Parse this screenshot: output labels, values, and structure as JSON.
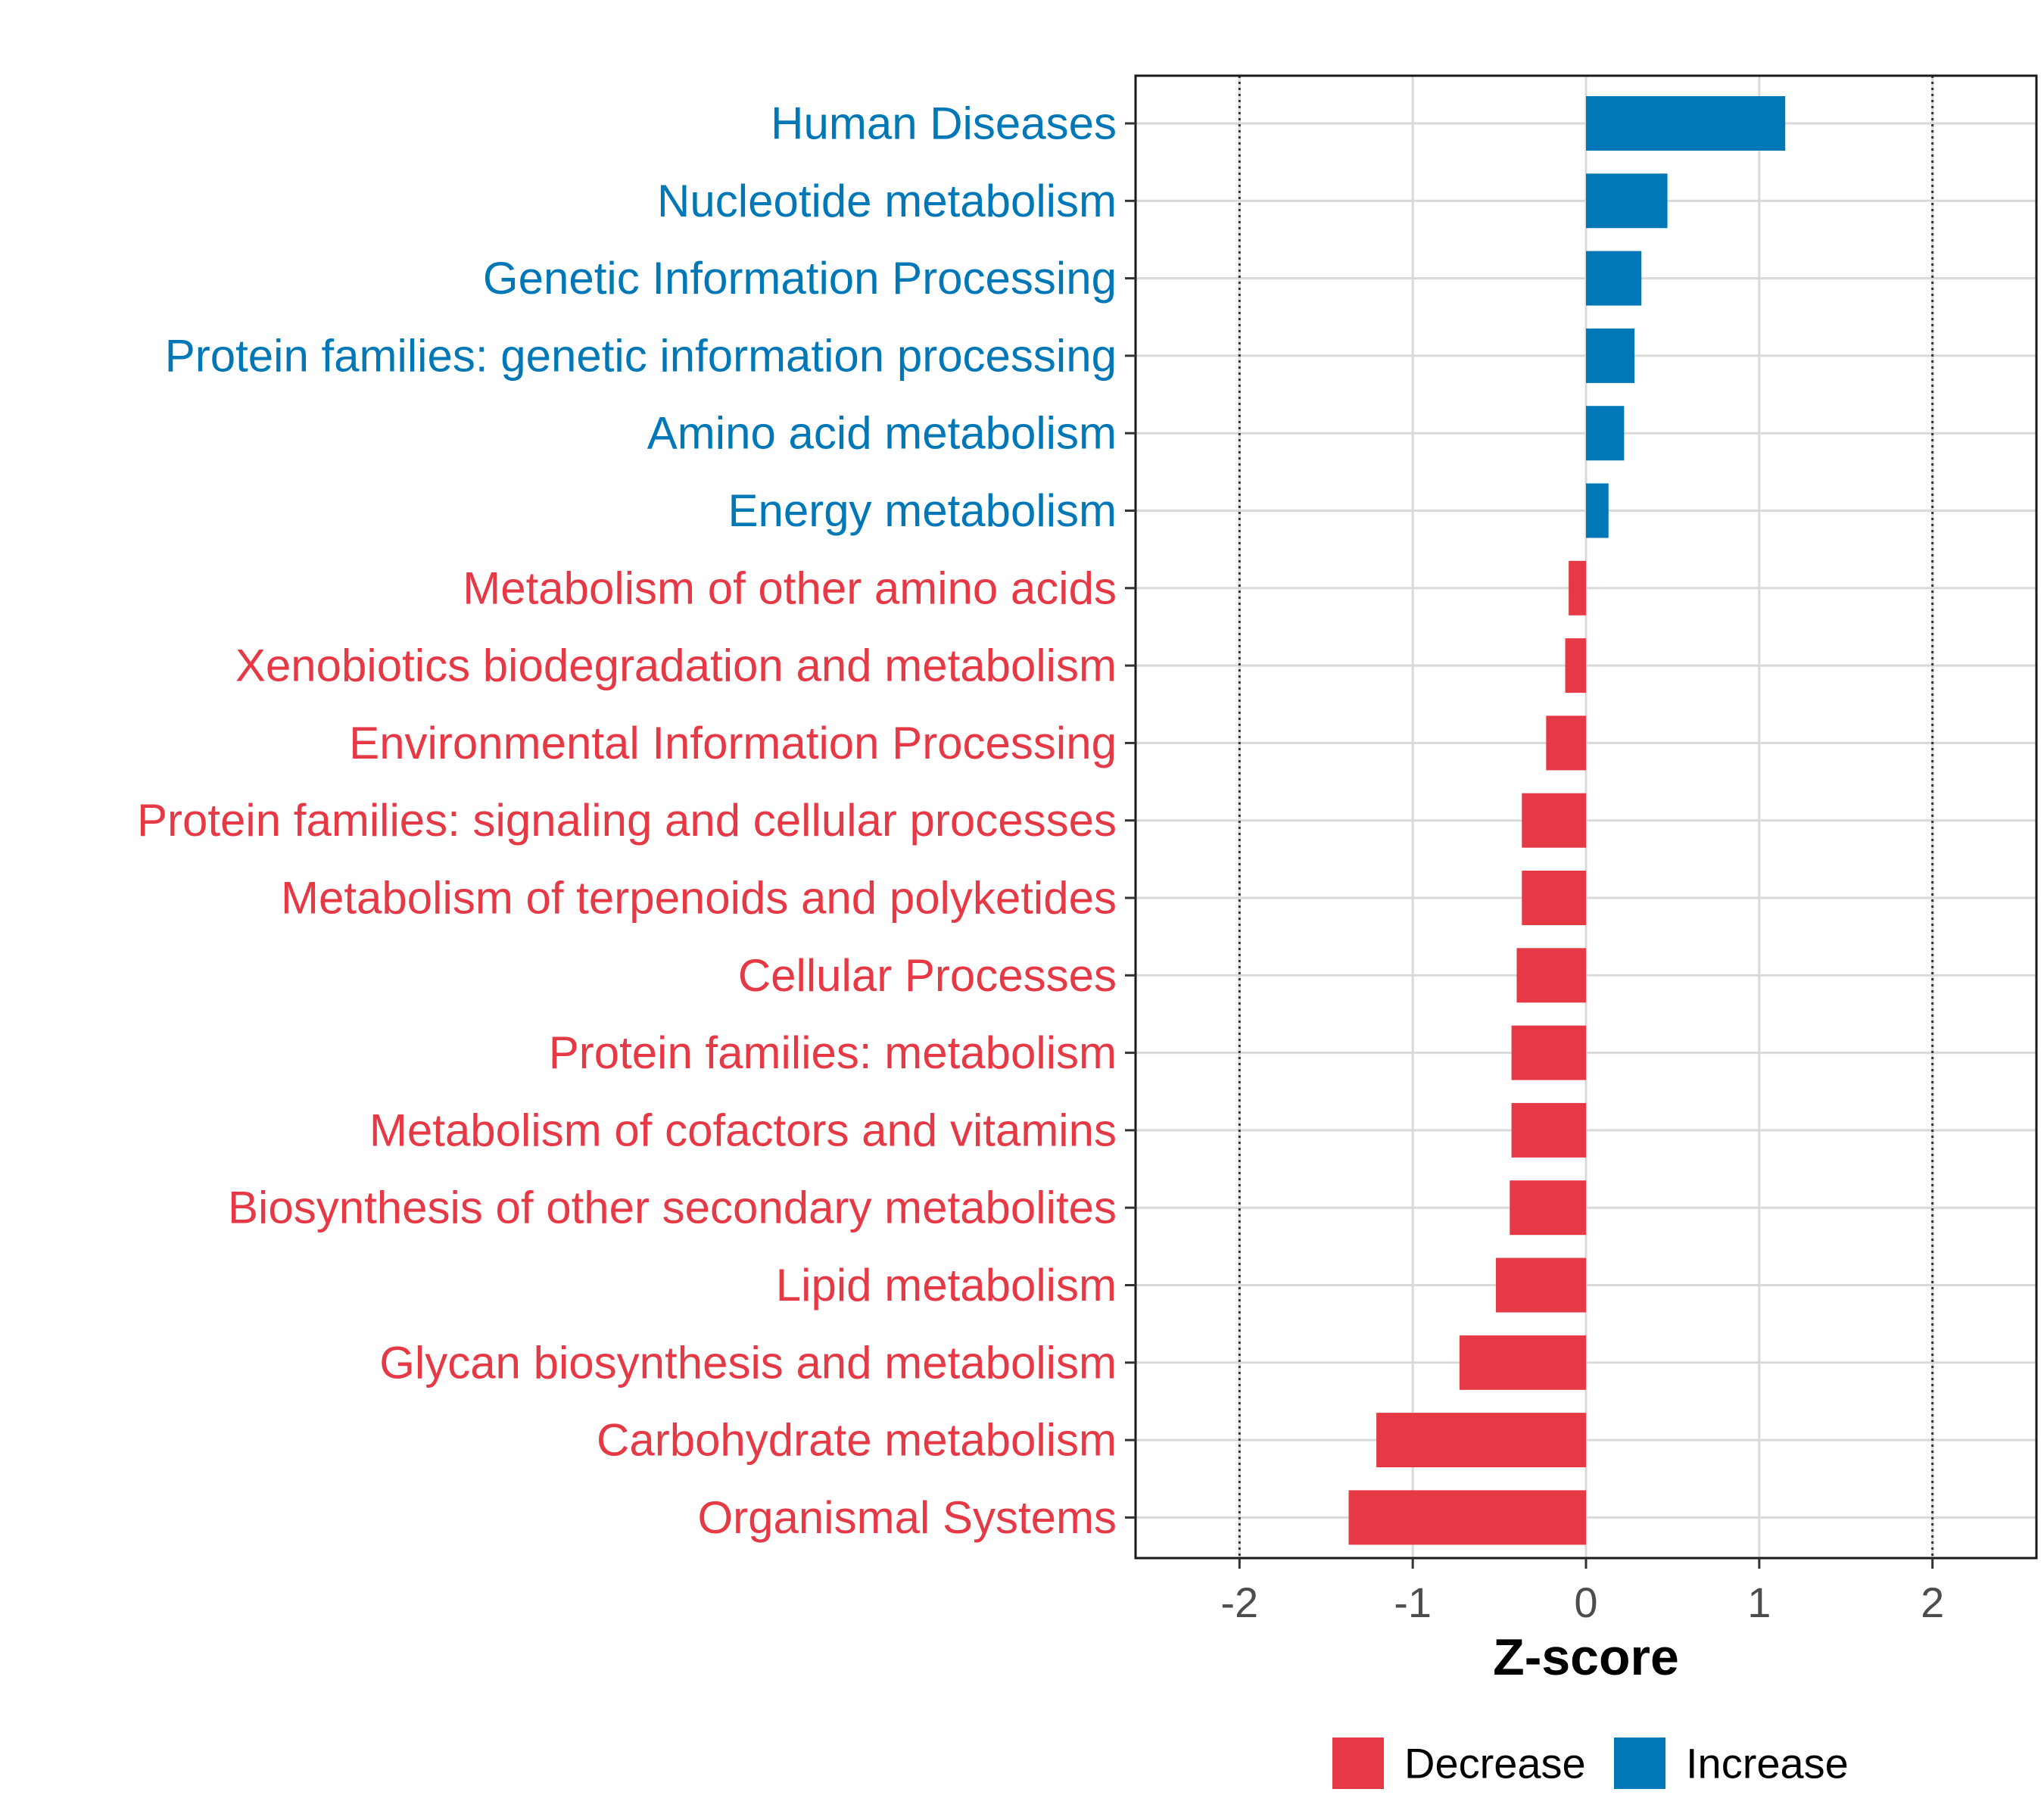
{
  "chart_data": {
    "type": "bar",
    "orientation": "horizontal",
    "xlabel": "Z-score",
    "xlim": [
      -2.6,
      2.6
    ],
    "xticks": [
      -2,
      -1,
      0,
      1,
      2
    ],
    "tick_labels": [
      "-2",
      "-1",
      "0",
      "1",
      "2"
    ],
    "reference_lines": [
      -2,
      2
    ],
    "grid": true,
    "legend_position": "bottom",
    "colors": {
      "Decrease": "#e63946",
      "Increase": "#0077b6"
    },
    "legend": [
      {
        "label": "Decrease",
        "color": "#e63946"
      },
      {
        "label": "Increase",
        "color": "#0077b6"
      }
    ],
    "categories": [
      "Human Diseases",
      "Nucleotide metabolism",
      "Genetic Information Processing",
      "Protein families: genetic information processing",
      "Amino acid metabolism",
      "Energy metabolism",
      "Metabolism of other amino acids",
      "Xenobiotics biodegradation and metabolism",
      "Environmental Information Processing",
      "Protein families: signaling and cellular processes",
      "Metabolism of terpenoids and polyketides",
      "Cellular Processes",
      "Protein families: metabolism",
      "Metabolism of cofactors and vitamins",
      "Biosynthesis of other secondary metabolites",
      "Lipid metabolism",
      "Glycan biosynthesis and metabolism",
      "Carbohydrate metabolism",
      "Organismal Systems"
    ],
    "values": [
      1.15,
      0.47,
      0.32,
      0.28,
      0.22,
      0.13,
      -0.1,
      -0.12,
      -0.23,
      -0.37,
      -0.37,
      -0.4,
      -0.43,
      -0.43,
      -0.44,
      -0.52,
      -0.73,
      -1.21,
      -1.37
    ],
    "groups": [
      "Increase",
      "Increase",
      "Increase",
      "Increase",
      "Increase",
      "Increase",
      "Decrease",
      "Decrease",
      "Decrease",
      "Decrease",
      "Decrease",
      "Decrease",
      "Decrease",
      "Decrease",
      "Decrease",
      "Decrease",
      "Decrease",
      "Decrease",
      "Decrease"
    ]
  }
}
